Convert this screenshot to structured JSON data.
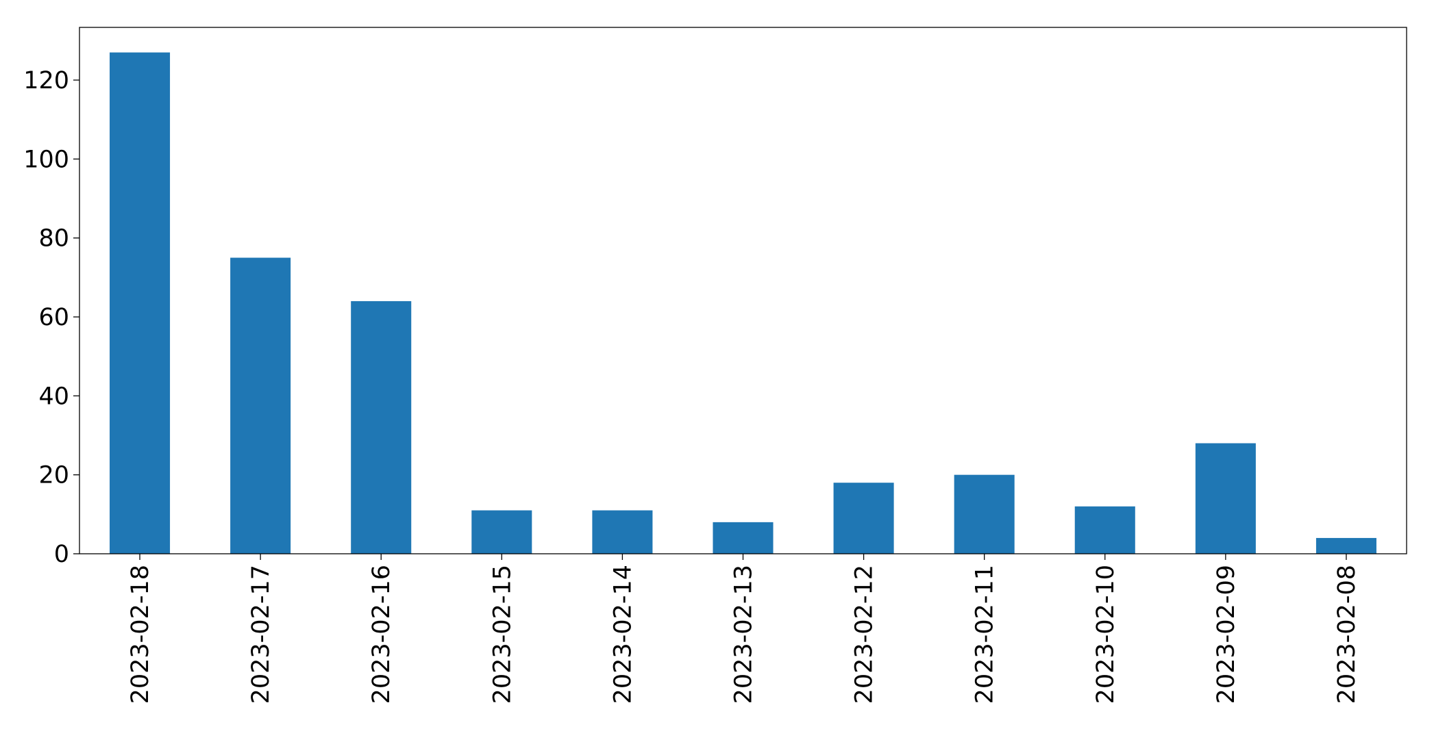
{
  "chart_data": {
    "type": "bar",
    "categories": [
      "2023-02-18",
      "2023-02-17",
      "2023-02-16",
      "2023-02-15",
      "2023-02-14",
      "2023-02-13",
      "2023-02-12",
      "2023-02-11",
      "2023-02-10",
      "2023-02-09",
      "2023-02-08"
    ],
    "values": [
      127,
      75,
      64,
      11,
      11,
      8,
      18,
      20,
      12,
      28,
      4
    ],
    "color": "#1f77b4",
    "ylim": [
      0,
      133.35
    ],
    "yticks": [
      0,
      20,
      40,
      60,
      80,
      100,
      120
    ],
    "grid": false
  }
}
